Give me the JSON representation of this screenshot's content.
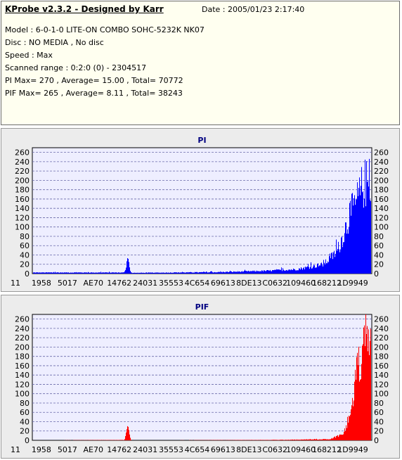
{
  "header": {
    "app_title": "KProbe v2.3.2 - Designed by Karr",
    "date": "Date : 2005/01/23 2:17:40",
    "lines": [
      "Model : 6-0-1-0 LITE-ON COMBO SOHC-5232K NK07",
      "Disc : NO MEDIA , No disc",
      "Speed : Max",
      "Scanned range : 0:2:0 (0) - 2304517",
      "PI Max= 270 , Average= 15.00 , Total= 70772",
      "PIF Max= 265 , Average= 8.11 , Total= 38243"
    ]
  },
  "chart_data": [
    {
      "type": "bar",
      "title": "PI",
      "color": "#0000ff",
      "ylim": [
        0,
        270
      ],
      "yticks": [
        0,
        20,
        40,
        60,
        80,
        100,
        120,
        140,
        160,
        180,
        200,
        220,
        240,
        260
      ],
      "xtick_labels": [
        "11",
        "1958",
        "5017",
        "AE70",
        "14762",
        "24031",
        "35553",
        "4C654",
        "69613",
        "8DE13",
        "C0632",
        "109460",
        "168212",
        "1D9949"
      ],
      "grid": true,
      "values_description_points": [
        [
          0,
          3
        ],
        [
          0.27,
          3
        ],
        [
          0.28,
          36
        ],
        [
          0.29,
          2
        ],
        [
          0.55,
          4
        ],
        [
          0.7,
          8
        ],
        [
          0.78,
          12
        ],
        [
          0.86,
          25
        ],
        [
          0.9,
          60
        ],
        [
          0.92,
          110
        ],
        [
          0.94,
          165
        ],
        [
          0.96,
          200
        ],
        [
          0.98,
          250
        ],
        [
          1.0,
          245
        ]
      ]
    },
    {
      "type": "bar",
      "title": "PIF",
      "color": "#ff0000",
      "ylim": [
        0,
        270
      ],
      "yticks": [
        0,
        20,
        40,
        60,
        80,
        100,
        120,
        140,
        160,
        180,
        200,
        220,
        240,
        260
      ],
      "xtick_labels": [
        "11",
        "1958",
        "5017",
        "AE70",
        "14762",
        "24031",
        "35553",
        "4C654",
        "69613",
        "8DE13",
        "C0632",
        "109460",
        "168212",
        "1D9949"
      ],
      "grid": true,
      "values_description_points": [
        [
          0,
          0
        ],
        [
          0.27,
          1
        ],
        [
          0.28,
          33
        ],
        [
          0.29,
          0
        ],
        [
          0.7,
          1
        ],
        [
          0.88,
          3
        ],
        [
          0.92,
          20
        ],
        [
          0.94,
          80
        ],
        [
          0.96,
          190
        ],
        [
          0.98,
          255
        ],
        [
          1.0,
          240
        ]
      ]
    }
  ]
}
